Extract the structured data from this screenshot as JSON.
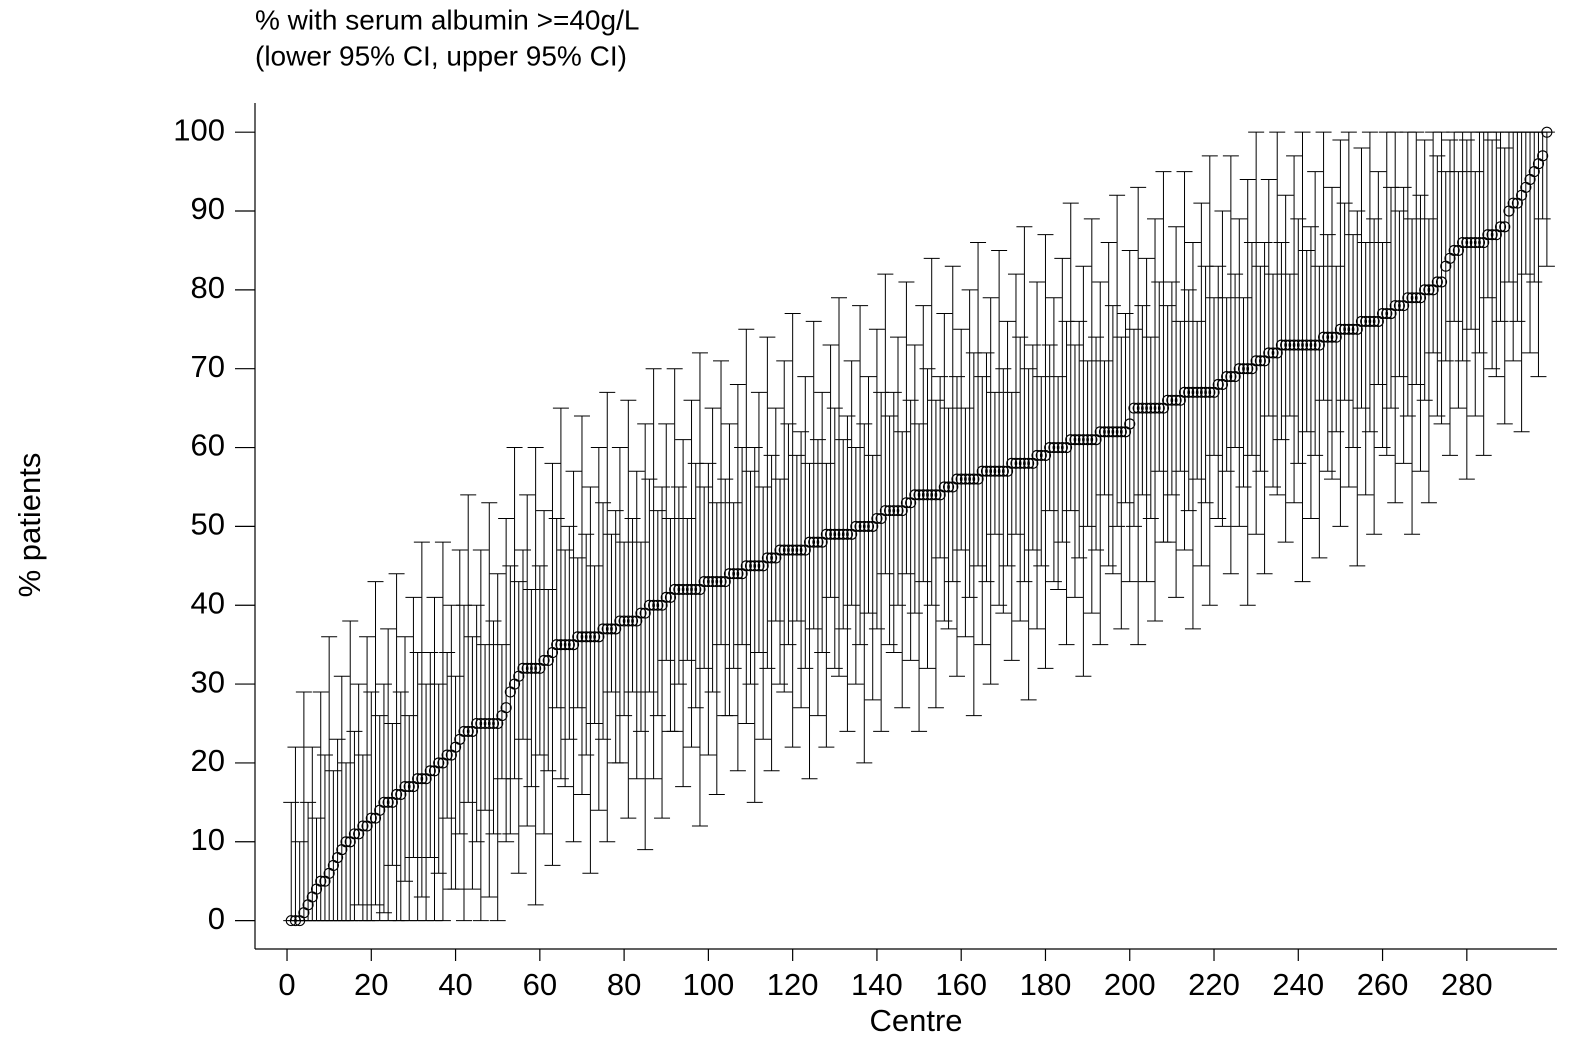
{
  "chart_data": {
    "type": "errorbar",
    "title": "% with serum albumin >=40g/L",
    "subtitle": "(lower 95% CI, upper 95% CI)",
    "xlabel": "Centre",
    "ylabel": "% patients",
    "xlim": [
      -7.6,
      301.4
    ],
    "ylim": [
      -3.6,
      103.7
    ],
    "xticks": [
      0,
      20,
      40,
      60,
      80,
      100,
      120,
      140,
      160,
      180,
      200,
      220,
      240,
      260,
      280
    ],
    "yticks": [
      0,
      10,
      20,
      30,
      40,
      50,
      60,
      70,
      80,
      90,
      100
    ],
    "color": "#000000",
    "x": [
      1,
      2,
      3,
      4,
      5,
      6,
      7,
      8,
      9,
      10,
      11,
      12,
      13,
      14,
      15,
      16,
      17,
      18,
      19,
      20,
      21,
      22,
      23,
      24,
      25,
      26,
      27,
      28,
      29,
      30,
      31,
      32,
      33,
      34,
      35,
      36,
      37,
      38,
      39,
      40,
      41,
      42,
      43,
      44,
      45,
      46,
      47,
      48,
      49,
      50,
      51,
      52,
      53,
      54,
      55,
      56,
      57,
      58,
      59,
      60,
      61,
      62,
      63,
      64,
      65,
      66,
      67,
      68,
      69,
      70,
      71,
      72,
      73,
      74,
      75,
      76,
      77,
      78,
      79,
      80,
      81,
      82,
      83,
      84,
      85,
      86,
      87,
      88,
      89,
      90,
      91,
      92,
      93,
      94,
      95,
      96,
      97,
      98,
      99,
      100,
      101,
      102,
      103,
      104,
      105,
      106,
      107,
      108,
      109,
      110,
      111,
      112,
      113,
      114,
      115,
      116,
      117,
      118,
      119,
      120,
      121,
      122,
      123,
      124,
      125,
      126,
      127,
      128,
      129,
      130,
      131,
      132,
      133,
      134,
      135,
      136,
      137,
      138,
      139,
      140,
      141,
      142,
      143,
      144,
      145,
      146,
      147,
      148,
      149,
      150,
      151,
      152,
      153,
      154,
      155,
      156,
      157,
      158,
      159,
      160,
      161,
      162,
      163,
      164,
      165,
      166,
      167,
      168,
      169,
      170,
      171,
      172,
      173,
      174,
      175,
      176,
      177,
      178,
      179,
      180,
      181,
      182,
      183,
      184,
      185,
      186,
      187,
      188,
      189,
      190,
      191,
      192,
      193,
      194,
      195,
      196,
      197,
      198,
      199,
      200,
      201,
      202,
      203,
      204,
      205,
      206,
      207,
      208,
      209,
      210,
      211,
      212,
      213,
      214,
      215,
      216,
      217,
      218,
      219,
      220,
      221,
      222,
      223,
      224,
      225,
      226,
      227,
      228,
      229,
      230,
      231,
      232,
      233,
      234,
      235,
      236,
      237,
      238,
      239,
      240,
      241,
      242,
      243,
      244,
      245,
      246,
      247,
      248,
      249,
      250,
      251,
      252,
      253,
      254,
      255,
      256,
      257,
      258,
      259,
      260,
      261,
      262,
      263,
      264,
      265,
      266,
      267,
      268,
      269,
      270,
      271,
      272,
      273,
      274,
      275,
      276,
      277,
      278,
      279,
      280,
      281,
      282,
      283,
      284,
      285,
      286,
      287,
      288,
      289,
      290,
      291,
      292,
      293,
      294,
      295,
      296,
      297,
      298,
      299
    ],
    "values": [
      0,
      0,
      0,
      1,
      2,
      3,
      4,
      5,
      5,
      6,
      7,
      8,
      9,
      10,
      10,
      11,
      11,
      12,
      12,
      13,
      13,
      14,
      15,
      15,
      15,
      16,
      16,
      17,
      17,
      17,
      18,
      18,
      18,
      19,
      19,
      20,
      20,
      21,
      21,
      22,
      23,
      24,
      24,
      24,
      25,
      25,
      25,
      25,
      25,
      25,
      26,
      27,
      29,
      30,
      31,
      32,
      32,
      32,
      32,
      32,
      33,
      33,
      34,
      35,
      35,
      35,
      35,
      35,
      36,
      36,
      36,
      36,
      36,
      36,
      37,
      37,
      37,
      37,
      38,
      38,
      38,
      38,
      38,
      39,
      39,
      40,
      40,
      40,
      40,
      41,
      41,
      42,
      42,
      42,
      42,
      42,
      42,
      42,
      43,
      43,
      43,
      43,
      43,
      43,
      44,
      44,
      44,
      44,
      45,
      45,
      45,
      45,
      45,
      46,
      46,
      46,
      47,
      47,
      47,
      47,
      47,
      47,
      47,
      48,
      48,
      48,
      48,
      49,
      49,
      49,
      49,
      49,
      49,
      49,
      50,
      50,
      50,
      50,
      50,
      51,
      51,
      52,
      52,
      52,
      52,
      52,
      53,
      53,
      54,
      54,
      54,
      54,
      54,
      54,
      54,
      55,
      55,
      55,
      56,
      56,
      56,
      56,
      56,
      56,
      57,
      57,
      57,
      57,
      57,
      57,
      57,
      58,
      58,
      58,
      58,
      58,
      58,
      59,
      59,
      59,
      60,
      60,
      60,
      60,
      60,
      61,
      61,
      61,
      61,
      61,
      61,
      61,
      62,
      62,
      62,
      62,
      62,
      62,
      62,
      63,
      65,
      65,
      65,
      65,
      65,
      65,
      65,
      65,
      66,
      66,
      66,
      66,
      67,
      67,
      67,
      67,
      67,
      67,
      67,
      67,
      68,
      68,
      69,
      69,
      69,
      70,
      70,
      70,
      70,
      71,
      71,
      71,
      72,
      72,
      72,
      73,
      73,
      73,
      73,
      73,
      73,
      73,
      73,
      73,
      73,
      74,
      74,
      74,
      74,
      75,
      75,
      75,
      75,
      75,
      76,
      76,
      76,
      76,
      76,
      77,
      77,
      77,
      78,
      78,
      78,
      79,
      79,
      79,
      79,
      80,
      80,
      80,
      81,
      81,
      83,
      84,
      85,
      85,
      86,
      86,
      86,
      86,
      86,
      86,
      87,
      87,
      87,
      88,
      88,
      90,
      91,
      91,
      92,
      93,
      94,
      95,
      96,
      97,
      100
    ],
    "lower": [
      0,
      0,
      0,
      0,
      0,
      0,
      0,
      0,
      0,
      0,
      0,
      0,
      0,
      0,
      0,
      0,
      2,
      0,
      0,
      0,
      2,
      0,
      1,
      0,
      7,
      0,
      0,
      5,
      0,
      8,
      0,
      3,
      0,
      8,
      0,
      6,
      0,
      13,
      4,
      4,
      11,
      0,
      15,
      4,
      10,
      0,
      14,
      3,
      11,
      0,
      18,
      10,
      11,
      18,
      6,
      23,
      12,
      17,
      2,
      21,
      11,
      19,
      7,
      27,
      18,
      17,
      23,
      10,
      27,
      16,
      21,
      6,
      25,
      14,
      23,
      10,
      29,
      20,
      20,
      26,
      13,
      29,
      18,
      24,
      9,
      29,
      18,
      26,
      13,
      33,
      24,
      24,
      30,
      17,
      33,
      22,
      27,
      12,
      32,
      21,
      29,
      16,
      35,
      26,
      26,
      32,
      19,
      35,
      25,
      30,
      15,
      34,
      23,
      32,
      19,
      38,
      30,
      29,
      35,
      22,
      38,
      27,
      32,
      18,
      37,
      26,
      34,
      22,
      41,
      32,
      31,
      37,
      24,
      40,
      30,
      35,
      20,
      39,
      28,
      37,
      24,
      44,
      35,
      34,
      40,
      27,
      44,
      33,
      39,
      24,
      43,
      32,
      40,
      27,
      46,
      38,
      37,
      43,
      31,
      47,
      36,
      41,
      26,
      45,
      35,
      43,
      30,
      49,
      40,
      39,
      45,
      33,
      49,
      38,
      43,
      28,
      47,
      37,
      45,
      32,
      52,
      43,
      42,
      48,
      35,
      52,
      41,
      46,
      31,
      50,
      39,
      47,
      35,
      54,
      45,
      44,
      50,
      37,
      53,
      43,
      50,
      35,
      54,
      43,
      51,
      38,
      57,
      48,
      48,
      54,
      41,
      57,
      47,
      52,
      37,
      56,
      45,
      53,
      40,
      59,
      51,
      50,
      57,
      44,
      60,
      50,
      55,
      40,
      59,
      49,
      57,
      44,
      64,
      55,
      54,
      61,
      48,
      64,
      53,
      58,
      43,
      62,
      51,
      59,
      46,
      66,
      57,
      56,
      62,
      50,
      66,
      55,
      60,
      45,
      65,
      54,
      62,
      49,
      68,
      60,
      59,
      65,
      53,
      69,
      58,
      64,
      49,
      68,
      57,
      66,
      53,
      72,
      64,
      63,
      71,
      59,
      76,
      65,
      71,
      56,
      75,
      64,
      72,
      59,
      79,
      70,
      69,
      76,
      63,
      81,
      71,
      76,
      62,
      82,
      72,
      81,
      69,
      89,
      83
    ],
    "upper": [
      15,
      22,
      10,
      29,
      15,
      22,
      13,
      29,
      21,
      36,
      19,
      23,
      31,
      20,
      38,
      24,
      30,
      21,
      36,
      29,
      43,
      26,
      30,
      37,
      25,
      44,
      29,
      36,
      26,
      41,
      34,
      48,
      30,
      34,
      41,
      30,
      48,
      34,
      40,
      31,
      47,
      40,
      54,
      36,
      40,
      47,
      35,
      53,
      38,
      44,
      35,
      51,
      45,
      60,
      43,
      47,
      54,
      42,
      60,
      45,
      52,
      42,
      58,
      51,
      65,
      47,
      50,
      57,
      46,
      64,
      49,
      55,
      45,
      60,
      53,
      67,
      49,
      52,
      60,
      48,
      66,
      51,
      57,
      48,
      63,
      56,
      70,
      52,
      55,
      63,
      51,
      70,
      55,
      61,
      51,
      66,
      58,
      72,
      55,
      58,
      65,
      53,
      71,
      56,
      63,
      53,
      68,
      60,
      75,
      57,
      60,
      67,
      55,
      74,
      59,
      65,
      56,
      71,
      63,
      77,
      59,
      62,
      69,
      58,
      76,
      61,
      67,
      58,
      73,
      65,
      79,
      61,
      64,
      71,
      60,
      78,
      63,
      69,
      59,
      75,
      67,
      82,
      64,
      67,
      74,
      62,
      81,
      66,
      73,
      63,
      78,
      70,
      84,
      66,
      69,
      77,
      65,
      83,
      69,
      75,
      65,
      80,
      72,
      86,
      69,
      72,
      79,
      67,
      85,
      70,
      76,
      67,
      82,
      74,
      88,
      70,
      73,
      81,
      69,
      87,
      73,
      79,
      69,
      84,
      76,
      91,
      73,
      76,
      83,
      71,
      89,
      74,
      81,
      71,
      86,
      78,
      92,
      74,
      77,
      85,
      75,
      93,
      78,
      84,
      74,
      89,
      81,
      95,
      78,
      81,
      88,
      76,
      95,
      80,
      86,
      76,
      91,
      83,
      97,
      79,
      83,
      90,
      79,
      97,
      82,
      89,
      79,
      94,
      86,
      100,
      83,
      86,
      94,
      82,
      100,
      86,
      92,
      82,
      97,
      89,
      100,
      85,
      88,
      95,
      83,
      100,
      87,
      93,
      83,
      99,
      91,
      100,
      87,
      90,
      98,
      86,
      100,
      89,
      95,
      86,
      100,
      93,
      100,
      90,
      93,
      100,
      89,
      100,
      92,
      99,
      89,
      100,
      97,
      100,
      95,
      99,
      100,
      95,
      100,
      99,
      100,
      95,
      100,
      100,
      100,
      99,
      100,
      100,
      98,
      100,
      100,
      100,
      100,
      100,
      100,
      100,
      100,
      100,
      100
    ]
  }
}
